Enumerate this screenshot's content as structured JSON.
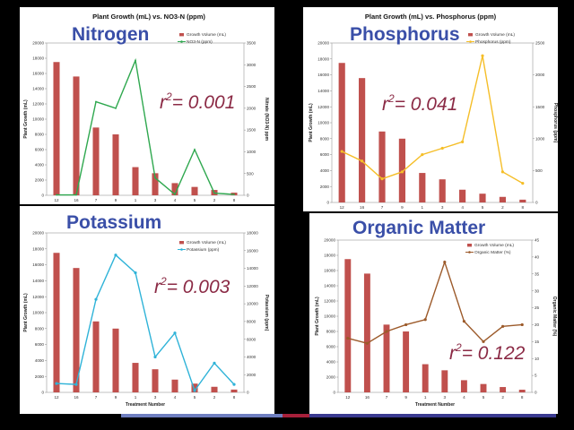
{
  "colors": {
    "bars": "#c0504d",
    "nitrogen": "#2fa84f",
    "phosphorus": "#f5be28",
    "potassium": "#2fb3d8",
    "organic": "#9c5a2a",
    "bigTitle": "#3a4fa8",
    "r2": "#8b2a45"
  },
  "footer": {
    "segments": [
      "#6f7fc0",
      "#a6203a",
      "#3a3a90"
    ]
  },
  "panels": [
    {
      "id": "nitrogen",
      "big_title": "Nitrogen",
      "chart_title": "Plant Growth  (mL) vs. NO3-N (ppm)",
      "r2_prefix": "r",
      "r2_exp": "2",
      "r2_value": "= 0.001"
    },
    {
      "id": "phosphorus",
      "big_title": "Phosphorus",
      "chart_title": "Plant Growth  (mL) vs. Phosphorus (ppm)",
      "r2_prefix": "r",
      "r2_exp": "2",
      "r2_value": "= 0.041"
    },
    {
      "id": "potassium",
      "big_title": "Potassium",
      "chart_title": "",
      "r2_prefix": "r",
      "r2_exp": "2",
      "r2_value": "= 0.003"
    },
    {
      "id": "organic",
      "big_title": "Organic Matter",
      "chart_title": "",
      "r2_prefix": "r",
      "r2_exp": "2",
      "r2_value": "= 0.122"
    }
  ],
  "chart_data": [
    {
      "type": "bar+line",
      "title": "Plant Growth  (mL) vs. NO3-N (ppm)",
      "categories": [
        "12",
        "16",
        "7",
        "9",
        "1",
        "3",
        "4",
        "5",
        "2",
        "8"
      ],
      "xlabel": "Treatment Number",
      "ylabel": "Plant Growth (mL)",
      "y2label": "Nitrate (NO3-N)  ppm",
      "ylim": [
        0,
        20000
      ],
      "yticks": [
        0,
        2000,
        4000,
        6000,
        8000,
        10000,
        12000,
        14000,
        16000,
        18000,
        20000
      ],
      "y2lim": [
        0,
        3500
      ],
      "y2ticks": [
        0,
        500,
        1000,
        1500,
        2000,
        2500,
        3000,
        3500
      ],
      "series": [
        {
          "name": "Growth Volume (mL)",
          "kind": "bar",
          "axis": "y",
          "values": [
            17500,
            15600,
            8900,
            8000,
            3700,
            2900,
            1600,
            1100,
            700,
            350
          ]
        },
        {
          "name": "NO3-N (ppm)",
          "kind": "line",
          "axis": "y2",
          "values": [
            10,
            10,
            2150,
            2000,
            3100,
            400,
            20,
            1050,
            50,
            20
          ]
        }
      ],
      "legend": "top-right"
    },
    {
      "type": "bar+line",
      "title": "Plant Growth  (mL) vs. Phosphorus (ppm)",
      "categories": [
        "12",
        "16",
        "7",
        "9",
        "1",
        "3",
        "4",
        "5",
        "2",
        "8"
      ],
      "xlabel": "Treatment Number",
      "ylabel": "Plant Growth (mL)",
      "y2label": "Phosphorus (ppm)",
      "ylim": [
        0,
        20000
      ],
      "yticks": [
        0,
        2000,
        4000,
        6000,
        8000,
        10000,
        12000,
        14000,
        16000,
        18000,
        20000
      ],
      "y2lim": [
        0,
        2500
      ],
      "y2ticks": [
        0,
        500,
        1000,
        1500,
        2000,
        2500
      ],
      "series": [
        {
          "name": "Growth Volume (mL)",
          "kind": "bar",
          "axis": "y",
          "values": [
            17500,
            15600,
            8900,
            8000,
            3700,
            2900,
            1600,
            1100,
            700,
            350
          ]
        },
        {
          "name": "Phosphorus (ppm)",
          "kind": "line",
          "axis": "y2",
          "values": [
            800,
            650,
            370,
            480,
            750,
            850,
            950,
            2300,
            480,
            300
          ]
        }
      ],
      "legend": "top-right"
    },
    {
      "type": "bar+line",
      "title": "",
      "categories": [
        "12",
        "16",
        "7",
        "9",
        "1",
        "3",
        "4",
        "5",
        "2",
        "8"
      ],
      "xlabel": "Treatment Number",
      "ylabel": "Plant Growth (mL)",
      "y2label": "Potassium (ppm)",
      "ylim": [
        0,
        20000
      ],
      "yticks": [
        0,
        2000,
        4000,
        6000,
        8000,
        10000,
        12000,
        14000,
        16000,
        18000,
        20000
      ],
      "y2lim": [
        0,
        18000
      ],
      "y2ticks": [
        0,
        2000,
        4000,
        6000,
        8000,
        10000,
        12000,
        14000,
        16000,
        18000
      ],
      "series": [
        {
          "name": "Growth Volume (mL)",
          "kind": "bar",
          "axis": "y",
          "values": [
            17500,
            15600,
            8900,
            8000,
            3700,
            2900,
            1600,
            1100,
            700,
            350
          ]
        },
        {
          "name": "Potassium (ppm)",
          "kind": "line",
          "axis": "y2",
          "values": [
            1000,
            900,
            10500,
            15500,
            13500,
            4000,
            6700,
            200,
            3300,
            900
          ]
        }
      ],
      "legend": "top-right"
    },
    {
      "type": "bar+line",
      "title": "",
      "categories": [
        "12",
        "16",
        "7",
        "9",
        "1",
        "3",
        "4",
        "5",
        "2",
        "8"
      ],
      "xlabel": "Treatment Number",
      "ylabel": "Plant Growth (mL)",
      "y2label": "Organic Matter (%)",
      "ylim": [
        0,
        20000
      ],
      "yticks": [
        0,
        2000,
        4000,
        6000,
        8000,
        10000,
        12000,
        14000,
        16000,
        18000,
        20000
      ],
      "y2lim": [
        0,
        45
      ],
      "y2ticks": [
        0,
        5,
        10,
        15,
        20,
        25,
        30,
        35,
        40,
        45
      ],
      "series": [
        {
          "name": "Growth Volume (mL)",
          "kind": "bar",
          "axis": "y",
          "values": [
            17500,
            15600,
            8900,
            8000,
            3700,
            2900,
            1600,
            1100,
            700,
            350
          ]
        },
        {
          "name": "Organic Matter (%)",
          "kind": "line",
          "axis": "y2",
          "values": [
            16,
            14.5,
            18,
            20,
            21.5,
            38.5,
            21,
            15,
            19.5,
            20
          ]
        }
      ],
      "legend": "top-right"
    }
  ]
}
